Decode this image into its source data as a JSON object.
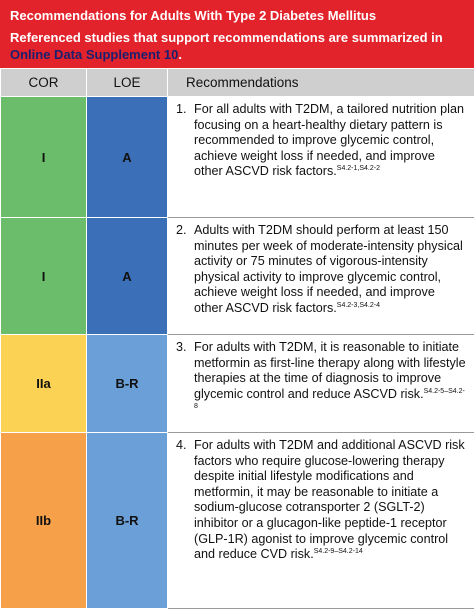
{
  "header": {
    "title": "Recommendations for Adults With Type 2 Diabetes Mellitus",
    "subtitle": "Referenced studies that support recommendations are summarized in",
    "link": "Online Data Supplement 10",
    "subtitle_end": "."
  },
  "table": {
    "columns": [
      "COR",
      "LOE",
      "Recommendations"
    ],
    "rows": [
      {
        "cor": "I",
        "loe": "A",
        "number": "1.",
        "text": "For all adults with T2DM, a tailored nutrition plan focusing on a heart-healthy dietary pattern is recommended to improve glycemic control, achieve weight loss if needed, and improve other ASCVD risk factors.",
        "refs": "S4.2-1,S4.2-2"
      },
      {
        "cor": "I",
        "loe": "A",
        "number": "2.",
        "text": "Adults with T2DM should perform at least 150 minutes per week of moderate-intensity physical activity or 75 minutes of vigorous-intensity physical activity to improve glycemic control, achieve weight loss if needed, and improve other ASCVD risk factors.",
        "refs": "S4.2-3,S4.2-4"
      },
      {
        "cor": "IIa",
        "loe": "B-R",
        "number": "3.",
        "text": "For adults with T2DM, it is reasonable to initiate metformin as first-line therapy along with lifestyle therapies at the time of diagnosis to improve glycemic control and reduce ASCVD risk.",
        "refs": "S4.2-5–S4.2-8"
      },
      {
        "cor": "IIb",
        "loe": "B-R",
        "number": "4.",
        "text": "For adults with T2DM and additional ASCVD risk factors who require glucose-lowering therapy despite initial lifestyle modifications and metformin, it may be reasonable to initiate a sodium-glucose cotransporter 2 (SGLT-2) inhibitor or a glucagon-like peptide-1 receptor (GLP-1R) agonist to improve glycemic control and reduce CVD risk.",
        "refs": "S4.2-9–S4.2-14"
      }
    ]
  }
}
